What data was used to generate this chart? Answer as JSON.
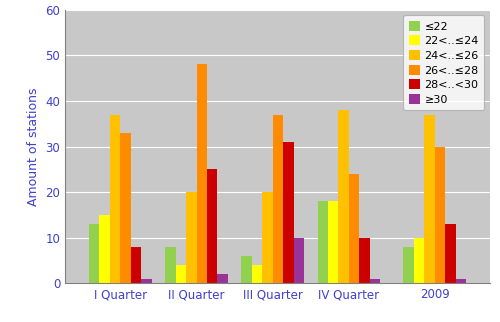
{
  "categories": [
    "I Quarter",
    "II Quarter",
    "III Quarter",
    "IV Quarter",
    "2009"
  ],
  "series": [
    {
      "label": "≤22",
      "color": "#92d050",
      "values": [
        13,
        8,
        6,
        18,
        8
      ]
    },
    {
      "label": "22<..≤24",
      "color": "#ffff00",
      "values": [
        15,
        4,
        4,
        18,
        10
      ]
    },
    {
      "label": "24<..≤26",
      "color": "#ffc000",
      "values": [
        37,
        20,
        20,
        38,
        37
      ]
    },
    {
      "label": "26<..≤28",
      "color": "#ff8c00",
      "values": [
        33,
        48,
        37,
        24,
        30
      ]
    },
    {
      "label": "28<..<30",
      "color": "#cc0000",
      "values": [
        8,
        25,
        31,
        10,
        13
      ]
    },
    {
      "label": "≥30",
      "color": "#993399",
      "values": [
        1,
        2,
        10,
        1,
        1
      ]
    }
  ],
  "ylabel": "Amount of stations",
  "ylim": [
    0,
    60
  ],
  "yticks": [
    0,
    10,
    20,
    30,
    40,
    50,
    60
  ],
  "fig_bg_color": "#ffffff",
  "plot_area_color": "#c8c8c8",
  "tick_label_color": "#4040cc",
  "axis_label_color": "#4040cc",
  "grid_color": "#ffffff",
  "bar_width": 0.11,
  "group_positions": [
    0.38,
    1.18,
    1.98,
    2.78,
    3.68
  ]
}
